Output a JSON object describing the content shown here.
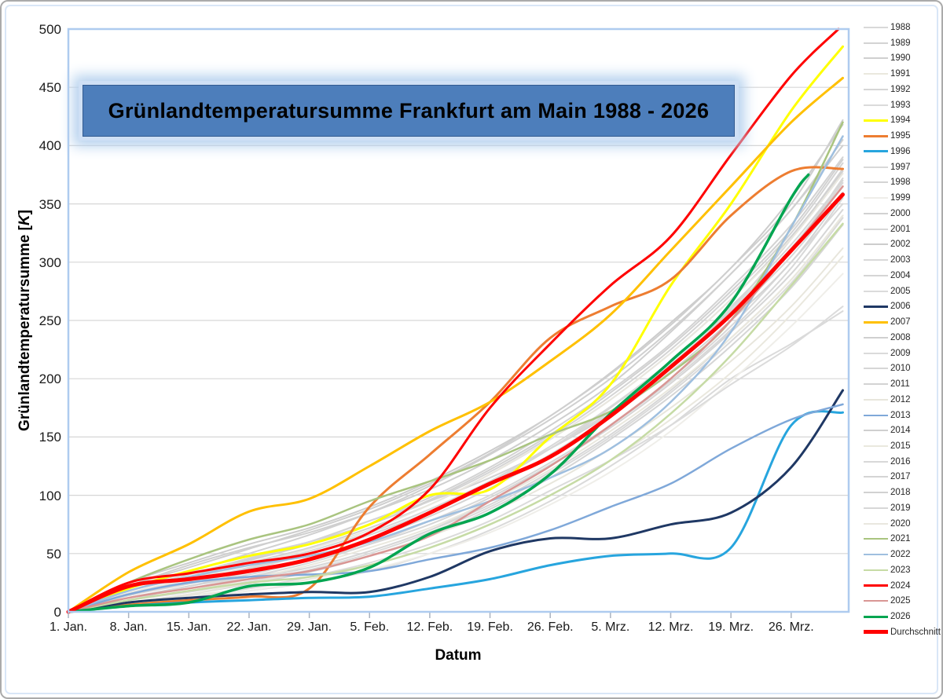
{
  "chart_data": {
    "type": "line",
    "title": "Grünlandtemperatursumme Frankfurt am Main 1988 - 2026",
    "title_box_bg": "#4d7ebb",
    "xlabel": "Datum",
    "ylabel_prefix": "Grünlandtemperatursumme [",
    "ylabel_k": "K",
    "ylabel_suffix": "]",
    "ylim": [
      0,
      500
    ],
    "ytick_step": 50,
    "grid": "horizontal",
    "legend_position": "right",
    "plot_border_color": "#aecbef",
    "gridline_color": "#d6d6d6",
    "tick_color": "#aab3c0",
    "x_tick_labels": [
      "1. Jan.",
      "8. Jan.",
      "15. Jan.",
      "22. Jan.",
      "29. Jan.",
      "5. Feb.",
      "12. Feb.",
      "19. Feb.",
      "26. Feb.",
      "5. Mrz.",
      "12. Mrz.",
      "19. Mrz.",
      "26. Mrz."
    ],
    "x_tick_days": [
      0,
      7,
      14,
      21,
      28,
      35,
      42,
      49,
      56,
      63,
      70,
      77,
      84
    ],
    "x_days_default": [
      0,
      7,
      14,
      21,
      28,
      35,
      42,
      49,
      56,
      63,
      70,
      77,
      84,
      90
    ],
    "series": [
      {
        "name": "1988",
        "color": "#d9d9d9",
        "width": 2,
        "highlight": false,
        "values": [
          0,
          10,
          22,
          30,
          38,
          52,
          70,
          95,
          125,
          160,
          200,
          245,
          300,
          350
        ]
      },
      {
        "name": "1989",
        "color": "#d3d3d3",
        "width": 2,
        "highlight": false,
        "values": [
          0,
          18,
          30,
          45,
          60,
          78,
          95,
          115,
          140,
          170,
          210,
          260,
          320,
          380
        ]
      },
      {
        "name": "1990",
        "color": "#cfcfcf",
        "width": 2,
        "highlight": false,
        "values": [
          0,
          22,
          40,
          55,
          68,
          85,
          105,
          130,
          160,
          195,
          240,
          290,
          345,
          400
        ]
      },
      {
        "name": "1991",
        "color": "#eae8de",
        "width": 2,
        "highlight": false,
        "values": [
          0,
          8,
          14,
          20,
          28,
          40,
          55,
          75,
          100,
          130,
          165,
          205,
          255,
          305
        ]
      },
      {
        "name": "1992",
        "color": "#d6d6d6",
        "width": 2,
        "highlight": false,
        "values": [
          0,
          15,
          28,
          40,
          52,
          68,
          88,
          112,
          140,
          175,
          215,
          262,
          315,
          370
        ]
      },
      {
        "name": "1993",
        "color": "#dadada",
        "width": 2,
        "highlight": false,
        "values": [
          0,
          5,
          10,
          18,
          25,
          35,
          50,
          70,
          95,
          125,
          160,
          200,
          230,
          258
        ]
      },
      {
        "name": "1994",
        "color": "#ffff00",
        "width": 3,
        "highlight": true,
        "values": [
          0,
          20,
          35,
          48,
          58,
          75,
          100,
          105,
          150,
          195,
          280,
          350,
          430,
          485
        ]
      },
      {
        "name": "1995",
        "color": "#ed7d31",
        "width": 3,
        "highlight": true,
        "values": [
          0,
          6,
          10,
          13,
          20,
          90,
          135,
          180,
          235,
          262,
          285,
          340,
          378,
          380
        ]
      },
      {
        "name": "1996",
        "color": "#27a5de",
        "width": 3,
        "highlight": true,
        "values": [
          0,
          5,
          8,
          10,
          12,
          13,
          20,
          28,
          40,
          48,
          50,
          55,
          160,
          171
        ]
      },
      {
        "name": "1997",
        "color": "#d8d8d8",
        "width": 2,
        "highlight": false,
        "values": [
          0,
          12,
          20,
          30,
          42,
          58,
          78,
          100,
          128,
          160,
          198,
          242,
          295,
          355
        ]
      },
      {
        "name": "1998",
        "color": "#d4d4d4",
        "width": 2,
        "highlight": false,
        "values": [
          0,
          20,
          35,
          48,
          60,
          75,
          95,
          120,
          150,
          185,
          225,
          272,
          325,
          385
        ]
      },
      {
        "name": "1999",
        "color": "#efeee9",
        "width": 2,
        "highlight": false,
        "values": [
          0,
          6,
          11,
          18,
          26,
          36,
          50,
          68,
          92,
          120,
          155,
          198,
          245,
          290
        ]
      },
      {
        "name": "2000",
        "color": "#d2d2d2",
        "width": 2,
        "highlight": false,
        "values": [
          0,
          16,
          28,
          42,
          55,
          72,
          92,
          118,
          148,
          182,
          222,
          268,
          322,
          378
        ]
      },
      {
        "name": "2001",
        "color": "#d7d7d7",
        "width": 2,
        "highlight": false,
        "values": [
          0,
          10,
          18,
          28,
          38,
          52,
          70,
          92,
          120,
          152,
          190,
          235,
          285,
          340
        ]
      },
      {
        "name": "2002",
        "color": "#cccccc",
        "width": 2,
        "highlight": false,
        "values": [
          0,
          25,
          42,
          58,
          72,
          90,
          112,
          138,
          168,
          205,
          248,
          295,
          355,
          418
        ]
      },
      {
        "name": "2003",
        "color": "#d9d9d9",
        "width": 2,
        "highlight": false,
        "values": [
          0,
          14,
          24,
          36,
          50,
          66,
          85,
          110,
          140,
          172,
          210,
          255,
          305,
          360
        ]
      },
      {
        "name": "2004",
        "color": "#d5d5d5",
        "width": 2,
        "highlight": false,
        "values": [
          0,
          8,
          15,
          24,
          34,
          48,
          65,
          88,
          115,
          148,
          185,
          228,
          278,
          332
        ]
      },
      {
        "name": "2005",
        "color": "#dbdbdb",
        "width": 2,
        "highlight": false,
        "values": [
          0,
          6,
          12,
          20,
          30,
          42,
          58,
          78,
          104,
          130,
          160,
          195,
          228,
          262
        ]
      },
      {
        "name": "2006",
        "color": "#1f3864",
        "width": 3,
        "highlight": true,
        "values": [
          0,
          8,
          12,
          15,
          17,
          17,
          30,
          52,
          63,
          63,
          75,
          85,
          124,
          190
        ]
      },
      {
        "name": "2007",
        "color": "#ffc000",
        "width": 3,
        "highlight": true,
        "values": [
          0,
          34,
          58,
          86,
          97,
          125,
          155,
          180,
          215,
          255,
          310,
          365,
          420,
          458
        ]
      },
      {
        "name": "2008",
        "color": "#d0d0d0",
        "width": 2,
        "highlight": false,
        "values": [
          0,
          20,
          34,
          50,
          66,
          85,
          108,
          135,
          165,
          200,
          242,
          290,
          345,
          405
        ]
      },
      {
        "name": "2009",
        "color": "#dadada",
        "width": 2,
        "highlight": false,
        "values": [
          0,
          10,
          17,
          26,
          36,
          50,
          68,
          90,
          118,
          150,
          188,
          232,
          282,
          338
        ]
      },
      {
        "name": "2010",
        "color": "#d6d6d6",
        "width": 2,
        "highlight": false,
        "values": [
          0,
          12,
          22,
          32,
          44,
          58,
          75,
          98,
          126,
          158,
          196,
          240,
          290,
          345
        ]
      },
      {
        "name": "2011",
        "color": "#d3d3d3",
        "width": 2,
        "highlight": false,
        "values": [
          0,
          18,
          32,
          46,
          60,
          78,
          98,
          124,
          155,
          190,
          230,
          278,
          332,
          390
        ]
      },
      {
        "name": "2012",
        "color": "#e8e6dc",
        "width": 2,
        "highlight": false,
        "values": [
          0,
          8,
          15,
          25,
          35,
          48,
          65,
          85,
          110,
          140,
          175,
          215,
          262,
          312
        ]
      },
      {
        "name": "2013",
        "color": "#7fa8d9",
        "width": 2.5,
        "highlight": true,
        "values": [
          0,
          15,
          25,
          30,
          32,
          35,
          45,
          55,
          70,
          90,
          110,
          140,
          165,
          178
        ]
      },
      {
        "name": "2014",
        "color": "#cfcfcf",
        "width": 2,
        "highlight": false,
        "values": [
          0,
          22,
          38,
          54,
          70,
          88,
          110,
          136,
          168,
          204,
          246,
          295,
          350,
          422
        ]
      },
      {
        "name": "2015",
        "color": "#eae8de",
        "width": 2,
        "highlight": false,
        "values": [
          0,
          10,
          18,
          28,
          40,
          55,
          72,
          95,
          122,
          155,
          192,
          235,
          285,
          340
        ]
      },
      {
        "name": "2016",
        "color": "#d8d8d8",
        "width": 2,
        "highlight": false,
        "values": [
          0,
          15,
          26,
          38,
          52,
          68,
          88,
          112,
          142,
          176,
          215,
          260,
          312,
          368
        ]
      },
      {
        "name": "2017",
        "color": "#d4d4d4",
        "width": 2,
        "highlight": false,
        "values": [
          0,
          12,
          22,
          34,
          46,
          62,
          82,
          106,
          135,
          168,
          206,
          250,
          300,
          358
        ]
      },
      {
        "name": "2018",
        "color": "#d1d1d1",
        "width": 2,
        "highlight": false,
        "values": [
          0,
          18,
          30,
          44,
          58,
          75,
          96,
          122,
          152,
          188,
          228,
          275,
          328,
          388
        ]
      },
      {
        "name": "2019",
        "color": "#d7d7d7",
        "width": 2,
        "highlight": false,
        "values": [
          0,
          14,
          25,
          37,
          50,
          66,
          86,
          110,
          140,
          172,
          212,
          258,
          310,
          372
        ]
      },
      {
        "name": "2020",
        "color": "#e9e7df",
        "width": 2,
        "highlight": false,
        "values": [
          0,
          16,
          28,
          40,
          54,
          70,
          92,
          118,
          148,
          182,
          222,
          268,
          320,
          376
        ]
      },
      {
        "name": "2021",
        "color": "#a9c47f",
        "width": 2.5,
        "highlight": true,
        "values": [
          0,
          25,
          45,
          62,
          75,
          95,
          112,
          130,
          152,
          172,
          205,
          250,
          330,
          420
        ]
      },
      {
        "name": "2022",
        "color": "#9fbfdf",
        "width": 2.5,
        "highlight": true,
        "values": [
          0,
          18,
          30,
          40,
          48,
          60,
          78,
          95,
          115,
          140,
          180,
          240,
          330,
          408
        ]
      },
      {
        "name": "2023",
        "color": "#c6dba5",
        "width": 2.5,
        "highlight": true,
        "values": [
          0,
          10,
          18,
          25,
          30,
          40,
          55,
          75,
          100,
          130,
          170,
          220,
          280,
          333
        ]
      },
      {
        "name": "2024",
        "color": "#ff0000",
        "width": 3,
        "highlight": true,
        "days": [
          0,
          7,
          14,
          21,
          28,
          35,
          42,
          49,
          56,
          63,
          70,
          77,
          84,
          89.5
        ],
        "values": [
          0,
          25,
          33,
          42,
          50,
          68,
          105,
          175,
          230,
          280,
          322,
          392,
          460,
          500
        ]
      },
      {
        "name": "2025",
        "color": "#d99694",
        "width": 2.5,
        "highlight": true,
        "values": [
          0,
          12,
          20,
          28,
          35,
          48,
          65,
          95,
          125,
          160,
          200,
          250,
          310,
          365
        ]
      },
      {
        "name": "2026",
        "color": "#00a550",
        "width": 3.5,
        "highlight": true,
        "days": [
          0,
          7,
          14,
          21,
          28,
          35,
          42,
          49,
          56,
          63,
          70,
          77,
          84,
          86
        ],
        "values": [
          0,
          5,
          8,
          22,
          25,
          38,
          67,
          85,
          118,
          170,
          215,
          265,
          355,
          375
        ]
      },
      {
        "name": "Durchschnitt",
        "color": "#ff0000",
        "width": 5,
        "highlight": true,
        "values": [
          0,
          22,
          28,
          35,
          45,
          62,
          85,
          110,
          133,
          168,
          210,
          255,
          310,
          358
        ]
      }
    ]
  }
}
